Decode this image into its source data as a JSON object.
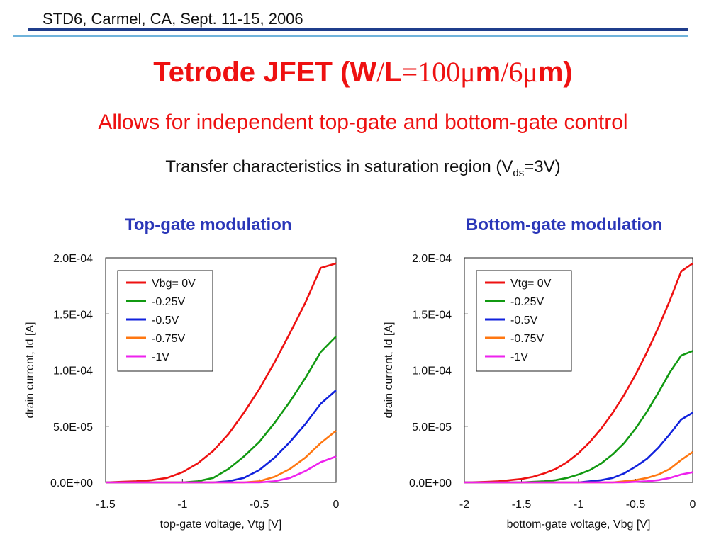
{
  "header": {
    "text": "STD6, Carmel, CA, Sept. 11-15, 2006"
  },
  "slide": {
    "title_prefix": "Tetrode JFET (W",
    "title_slash1": "/",
    "title_L": "L",
    "title_eq100": "=100",
    "title_mu1": "μ",
    "title_m1": "m",
    "title_slash6": "/6",
    "title_mu2": "μ",
    "title_m2": "m)",
    "subtitle": "Allows for independent top-gate and bottom-gate control",
    "caption_main": "Transfer characteristics in saturation region (V",
    "caption_sub": "ds",
    "caption_end": "=3V)"
  },
  "colors": {
    "red": "#ee1111",
    "green": "#119911",
    "blue": "#1122dd",
    "orange": "#ff7711",
    "magenta": "#ee22ee"
  },
  "chart_data": [
    {
      "type": "line",
      "title": "Top-gate modulation",
      "xlabel": "top-gate voltage, Vtg [V]",
      "ylabel": "drain current, Id [A]",
      "xlim": [
        -1.5,
        0
      ],
      "ylim": [
        0,
        0.0002
      ],
      "xticks": [
        "-1.5",
        "-1",
        "-0.5",
        "0"
      ],
      "yticks": [
        "0.0E+00",
        "5.0E-05",
        "1.0E-04",
        "1.5E-04",
        "2.0E-04"
      ],
      "x": [
        -1.5,
        -1.4,
        -1.3,
        -1.2,
        -1.1,
        -1.0,
        -0.9,
        -0.8,
        -0.7,
        -0.6,
        -0.5,
        -0.4,
        -0.3,
        -0.2,
        -0.1,
        0
      ],
      "series": [
        {
          "name": "Vbg= 0V",
          "color": "#ee1111",
          "values": [
            0,
            5e-07,
            1e-06,
            2e-06,
            4e-06,
            9e-06,
            1.7e-05,
            2.8e-05,
            4.3e-05,
            6.2e-05,
            8.3e-05,
            0.000107,
            0.000133,
            0.00016,
            0.000191,
            0.000195
          ]
        },
        {
          "name": "-0.25V",
          "color": "#119911",
          "values": [
            0,
            0,
            0,
            0,
            0,
            0,
            1e-06,
            4e-06,
            1.2e-05,
            2.3e-05,
            3.6e-05,
            5.3e-05,
            7.2e-05,
            9.3e-05,
            0.000116,
            0.00013
          ]
        },
        {
          "name": "-0.5V",
          "color": "#1122dd",
          "values": [
            0,
            0,
            0,
            0,
            0,
            0,
            0,
            0,
            1e-06,
            4e-06,
            1.1e-05,
            2.2e-05,
            3.6e-05,
            5.2e-05,
            7e-05,
            8.2e-05
          ]
        },
        {
          "name": "-0.75V",
          "color": "#ff7711",
          "values": [
            0,
            0,
            0,
            0,
            0,
            0,
            0,
            0,
            0,
            0,
            1e-06,
            5e-06,
            1.2e-05,
            2.2e-05,
            3.5e-05,
            4.6e-05
          ]
        },
        {
          "name": "-1V",
          "color": "#ee22ee",
          "values": [
            0,
            0,
            0,
            0,
            0,
            0,
            0,
            0,
            0,
            0,
            0,
            1e-06,
            4e-06,
            1e-05,
            1.8e-05,
            2.3e-05
          ]
        }
      ],
      "legend": "top-left",
      "grid": false
    },
    {
      "type": "line",
      "title": "Bottom-gate modulation",
      "xlabel": "bottom-gate voltage, Vbg [V]",
      "ylabel": "drain current, Id [A]",
      "xlim": [
        -2,
        0
      ],
      "ylim": [
        0,
        0.0002
      ],
      "xticks": [
        "-2",
        "-1.5",
        "-1",
        "-0.5",
        "0"
      ],
      "yticks": [
        "0.0E+00",
        "5.0E-05",
        "1.0E-04",
        "1.5E-04",
        "2.0E-04"
      ],
      "x": [
        -2.0,
        -1.9,
        -1.8,
        -1.7,
        -1.6,
        -1.5,
        -1.4,
        -1.3,
        -1.2,
        -1.1,
        -1.0,
        -0.9,
        -0.8,
        -0.7,
        -0.6,
        -0.5,
        -0.4,
        -0.3,
        -0.2,
        -0.1,
        0
      ],
      "series": [
        {
          "name": "Vtg= 0V",
          "color": "#ee1111",
          "values": [
            0,
            2e-07,
            5e-07,
            1e-06,
            2e-06,
            3e-06,
            5e-06,
            8e-06,
            1.2e-05,
            1.8e-05,
            2.6e-05,
            3.6e-05,
            4.8e-05,
            6.2e-05,
            7.8e-05,
            9.6e-05,
            0.000116,
            0.000138,
            0.000162,
            0.000188,
            0.000195
          ]
        },
        {
          "name": "-0.25V",
          "color": "#119911",
          "values": [
            0,
            0,
            0,
            0,
            0,
            0,
            5e-07,
            1e-06,
            2e-06,
            4e-06,
            7e-06,
            1.1e-05,
            1.7e-05,
            2.5e-05,
            3.5e-05,
            4.8e-05,
            6.3e-05,
            8e-05,
            9.8e-05,
            0.000113,
            0.000117
          ]
        },
        {
          "name": "-0.5V",
          "color": "#1122dd",
          "values": [
            0,
            0,
            0,
            0,
            0,
            0,
            0,
            0,
            0,
            0,
            0,
            1e-06,
            2e-06,
            4e-06,
            8e-06,
            1.4e-05,
            2.1e-05,
            3.1e-05,
            4.3e-05,
            5.6e-05,
            6.2e-05
          ]
        },
        {
          "name": "-0.75V",
          "color": "#ff7711",
          "values": [
            0,
            0,
            0,
            0,
            0,
            0,
            0,
            0,
            0,
            0,
            0,
            0,
            0,
            0,
            1e-06,
            2e-06,
            4e-06,
            7e-06,
            1.2e-05,
            2e-05,
            2.7e-05
          ]
        },
        {
          "name": "-1V",
          "color": "#ee22ee",
          "values": [
            0,
            0,
            0,
            0,
            0,
            0,
            0,
            0,
            0,
            0,
            0,
            0,
            0,
            0,
            0,
            5e-07,
            1e-06,
            2e-06,
            4e-06,
            7e-06,
            9e-06
          ]
        }
      ],
      "legend": "top-left",
      "grid": false
    }
  ]
}
